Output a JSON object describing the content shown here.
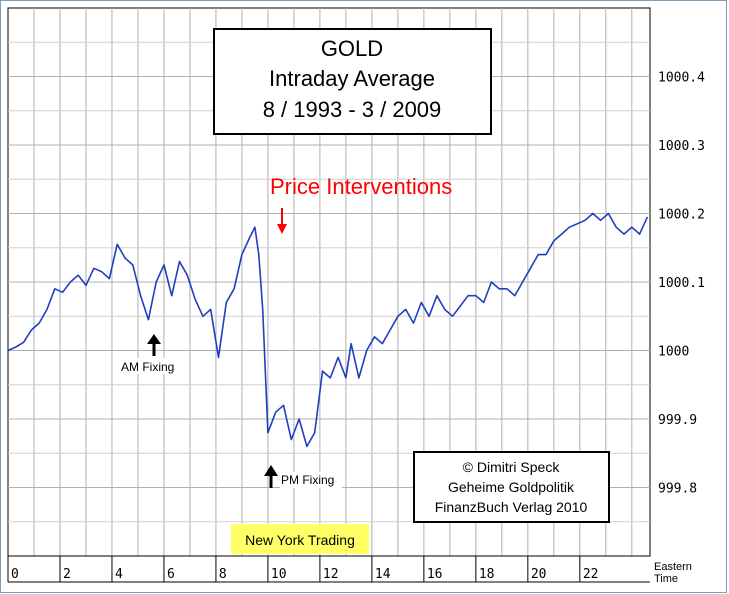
{
  "chart_data": {
    "type": "line",
    "title_lines": [
      "GOLD",
      "Intraday Average",
      "8 / 1993 - 3 / 2009"
    ],
    "x_unit_label": [
      "Eastern",
      "Time"
    ],
    "x_ticks": [
      "0",
      "2",
      "4",
      "6",
      "8",
      "10",
      "12",
      "14",
      "16",
      "18",
      "20",
      "22"
    ],
    "y_ticks": [
      "1000.4",
      "1000.3",
      "1000.2",
      "1000.1",
      "1000",
      "999.9",
      "999.8"
    ],
    "xlim": [
      0,
      24.7
    ],
    "ylim": [
      999.7,
      1000.5
    ],
    "grid": true,
    "line_color": "#1f3fbf",
    "series": [
      {
        "x": [
          0,
          0.3,
          0.6,
          0.9,
          1.2,
          1.5,
          1.8,
          2.1,
          2.4,
          2.7,
          3.0,
          3.3,
          3.6,
          3.9,
          4.2,
          4.5,
          4.8,
          5.1,
          5.4,
          5.7,
          6.0,
          6.3,
          6.6,
          6.9,
          7.2,
          7.5,
          7.8,
          8.1,
          8.4,
          8.7,
          9.0,
          9.3,
          9.5,
          9.65,
          9.8,
          10.0,
          10.3,
          10.6,
          10.9,
          11.2,
          11.5,
          11.8,
          12.1,
          12.4,
          12.7,
          13.0,
          13.2,
          13.5,
          13.8,
          14.1,
          14.4,
          14.7,
          15.0,
          15.3,
          15.6,
          15.9,
          16.2,
          16.5,
          16.8,
          17.1,
          17.4,
          17.7,
          18.0,
          18.3,
          18.6,
          18.9,
          19.2,
          19.5,
          19.8,
          20.1,
          20.4,
          20.7,
          21.0,
          21.3,
          21.6,
          21.9,
          22.2,
          22.5,
          22.8,
          23.1,
          23.4,
          23.7,
          24.0,
          24.3,
          24.6
        ],
        "values": [
          1000.0,
          1000.005,
          1000.012,
          1000.03,
          1000.04,
          1000.06,
          1000.09,
          1000.085,
          1000.1,
          1000.11,
          1000.095,
          1000.12,
          1000.115,
          1000.105,
          1000.155,
          1000.135,
          1000.125,
          1000.08,
          1000.045,
          1000.1,
          1000.125,
          1000.08,
          1000.13,
          1000.11,
          1000.075,
          1000.05,
          1000.06,
          999.99,
          1000.07,
          1000.09,
          1000.14,
          1000.165,
          1000.18,
          1000.14,
          1000.06,
          999.88,
          999.91,
          999.92,
          999.87,
          999.9,
          999.86,
          999.88,
          999.97,
          999.96,
          999.99,
          999.96,
          1000.01,
          999.96,
          1000.0,
          1000.02,
          1000.01,
          1000.03,
          1000.05,
          1000.06,
          1000.04,
          1000.07,
          1000.05,
          1000.08,
          1000.06,
          1000.05,
          1000.065,
          1000.08,
          1000.08,
          1000.07,
          1000.1,
          1000.09,
          1000.09,
          1000.08,
          1000.1,
          1000.12,
          1000.14,
          1000.14,
          1000.16,
          1000.17,
          1000.18,
          1000.185,
          1000.19,
          1000.2,
          1000.19,
          1000.2,
          1000.18,
          1000.17,
          1000.18,
          1000.17,
          1000.195
        ]
      }
    ],
    "annotations": {
      "interventions": "Price Interventions",
      "am_fixing": "AM Fixing",
      "pm_fixing": "PM Fixing",
      "ny_trading": "New York Trading",
      "copyright": [
        "© Dimitri Speck",
        "Geheime Goldpolitik",
        "FinanzBuch Verlag 2010"
      ]
    },
    "colors": {
      "annotation_red": "#ff0000",
      "ny_band": "#ffff66"
    }
  }
}
